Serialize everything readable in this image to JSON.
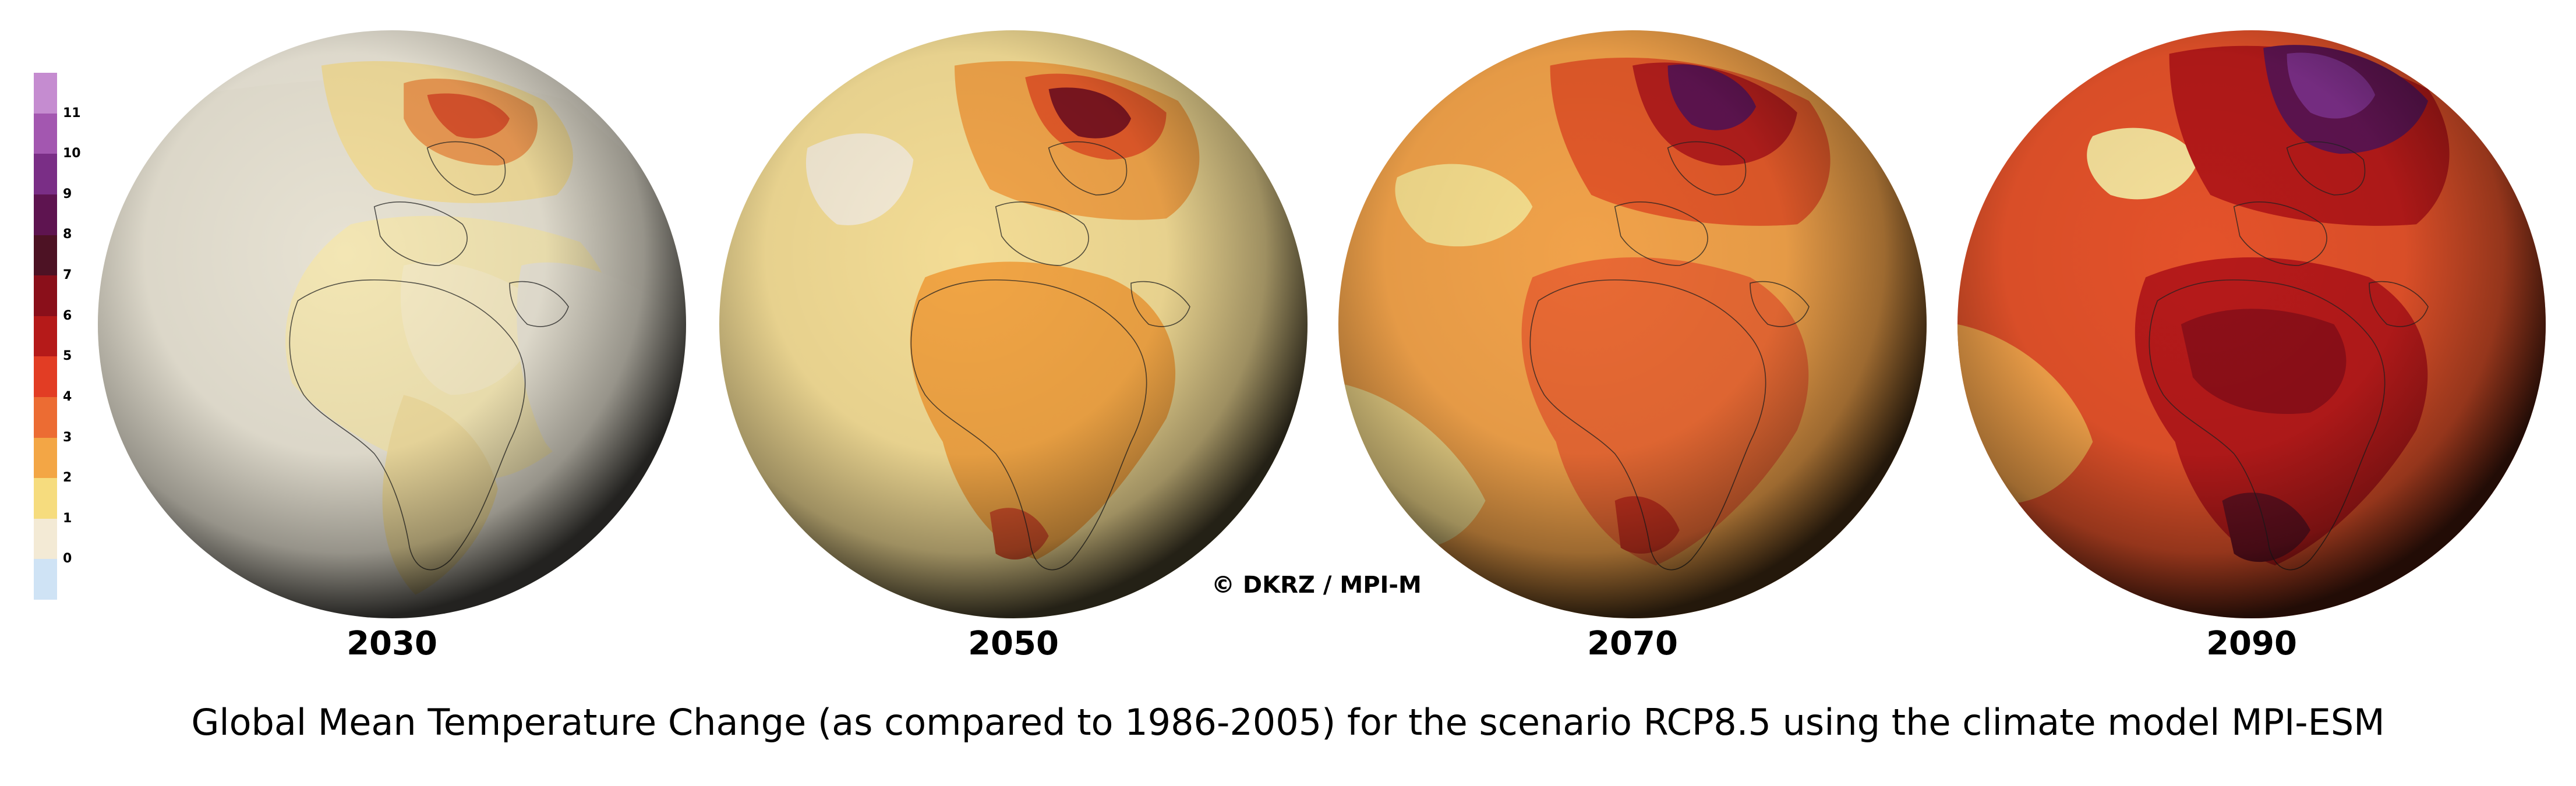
{
  "legend": {
    "labels": [
      "0",
      "1",
      "2",
      "3",
      "4",
      "5",
      "6",
      "7",
      "8",
      "9",
      "10",
      "11"
    ],
    "colors": [
      "#cfe3f5",
      "#f3ead5",
      "#f6dc7e",
      "#f3a645",
      "#ec6c33",
      "#e23d24",
      "#b51a19",
      "#8a0f1a",
      "#4d1224",
      "#5e1450",
      "#7a2e86",
      "#a357b0",
      "#c58cd0"
    ]
  },
  "panels": [
    {
      "year": "2030"
    },
    {
      "year": "2050"
    },
    {
      "year": "2070"
    },
    {
      "year": "2090"
    }
  ],
  "copyright": "© DKRZ / MPI-M",
  "caption": "Global Mean Temperature Change (as compared to 1986-2005) for the scenario RCP8.5 using the climate model MPI-ESM"
}
